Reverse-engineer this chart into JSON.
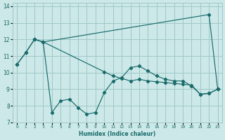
{
  "xlabel": "Humidex (Indice chaleur)",
  "bg_color": "#cce8e8",
  "grid_color": "#a0c8c8",
  "line_color": "#1a6b6b",
  "xlim": [
    -0.5,
    23.5
  ],
  "ylim": [
    7,
    14.2
  ],
  "yticks": [
    7,
    8,
    9,
    10,
    11,
    12,
    13,
    14
  ],
  "xticks": [
    0,
    1,
    2,
    3,
    4,
    5,
    6,
    7,
    8,
    9,
    10,
    11,
    12,
    13,
    14,
    15,
    16,
    17,
    18,
    19,
    20,
    21,
    22,
    23
  ],
  "series1_x": [
    0,
    1,
    2,
    3,
    22,
    23
  ],
  "series1_y": [
    10.5,
    11.2,
    12.0,
    11.85,
    13.5,
    9.0
  ],
  "series2_x": [
    0,
    1,
    2,
    3,
    4,
    5,
    6,
    7,
    8,
    9,
    10,
    11,
    12,
    13,
    14,
    15,
    16,
    17,
    18,
    19,
    20,
    21,
    22,
    23
  ],
  "series2_y": [
    10.5,
    11.2,
    12.0,
    11.85,
    7.6,
    8.3,
    8.4,
    7.9,
    7.5,
    7.6,
    8.8,
    9.5,
    9.7,
    10.3,
    10.4,
    10.1,
    9.8,
    9.6,
    9.5,
    9.5,
    9.2,
    8.7,
    8.75,
    9.0
  ],
  "series3_x": [
    2,
    3,
    10,
    11,
    12,
    13,
    14,
    15,
    16,
    17,
    18,
    19,
    20,
    21,
    22,
    23
  ],
  "series3_y": [
    12.0,
    11.85,
    10.05,
    9.8,
    9.65,
    9.5,
    9.6,
    9.5,
    9.45,
    9.4,
    9.35,
    9.3,
    9.25,
    8.7,
    8.75,
    9.0
  ]
}
